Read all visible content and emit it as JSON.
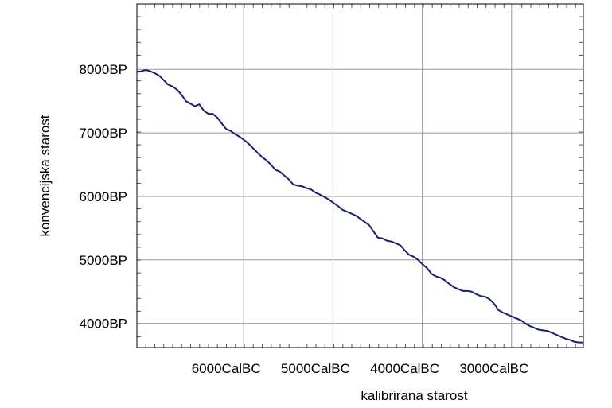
{
  "chart_data": {
    "type": "line",
    "title": "",
    "xlabel": "kalibrirana starost",
    "ylabel": "konvencijska starost",
    "x_unit": "CalBC",
    "y_unit": "BP",
    "xlim": [
      7000,
      2000
    ],
    "ylim": [
      3620,
      9030
    ],
    "x_direction": "decreasing-left-to-right",
    "x_ticks": [
      6000,
      5000,
      4000,
      3000
    ],
    "x_tick_labels": [
      "6000CalBC",
      "5000CalBC",
      "4000CalBC",
      "3000CalBC"
    ],
    "y_ticks": [
      4000,
      5000,
      6000,
      7000,
      8000
    ],
    "y_tick_labels": [
      "4000BP",
      "5000BP",
      "6000BP",
      "7000BP",
      "8000BP"
    ],
    "grid": true,
    "legend": "none",
    "colors": {
      "line": "#1a1f6e",
      "grid": "#999999",
      "frame": "#000000"
    },
    "series": [
      {
        "x": [
          7000,
          6950,
          6900,
          6850,
          6800,
          6750,
          6700,
          6650,
          6600,
          6550,
          6500,
          6450,
          6400,
          6350,
          6300,
          6250,
          6200,
          6150,
          6100,
          6050,
          6000,
          5950,
          5900,
          5850,
          5800,
          5750,
          5700,
          5650,
          5600,
          5550,
          5500,
          5450,
          5400,
          5350,
          5300,
          5250,
          5200,
          5150,
          5100,
          5050,
          5000,
          4950,
          4900,
          4850,
          4800,
          4750,
          4700,
          4650,
          4600,
          4550,
          4500,
          4450,
          4400,
          4350,
          4300,
          4250,
          4200,
          4150,
          4100,
          4050,
          4000,
          3950,
          3900,
          3850,
          3800,
          3750,
          3700,
          3650,
          3600,
          3550,
          3500,
          3450,
          3400,
          3350,
          3300,
          3250,
          3200,
          3150,
          3100,
          3050,
          3000,
          2950,
          2900,
          2850,
          2800,
          2750,
          2700,
          2650,
          2600,
          2550,
          2500,
          2450,
          2400,
          2350,
          2300,
          2250,
          2200,
          2150,
          2100,
          2050,
          2000
        ],
        "values": [
          7960,
          7970,
          7990,
          7970,
          7940,
          7900,
          7830,
          7760,
          7730,
          7680,
          7600,
          7500,
          7460,
          7420,
          7450,
          7350,
          7300,
          7300,
          7240,
          7150,
          7060,
          7030,
          6980,
          6940,
          6890,
          6830,
          6760,
          6690,
          6620,
          6570,
          6500,
          6420,
          6390,
          6330,
          6270,
          6190,
          6170,
          6160,
          6130,
          6110,
          6060,
          6030,
          5990,
          5950,
          5900,
          5850,
          5790,
          5760,
          5730,
          5700,
          5650,
          5600,
          5550,
          5450,
          5350,
          5340,
          5300,
          5290,
          5260,
          5230,
          5150,
          5080,
          5050,
          5000,
          4930,
          4870,
          4780,
          4740,
          4720,
          4680,
          4620,
          4570,
          4540,
          4510,
          4510,
          4500,
          4460,
          4430,
          4420,
          4380,
          4310,
          4210,
          4170,
          4140,
          4110,
          4080,
          4050,
          4000,
          3960,
          3930,
          3900,
          3890,
          3880,
          3850,
          3820,
          3790,
          3760,
          3740,
          3710,
          3700,
          3700
        ]
      }
    ]
  }
}
